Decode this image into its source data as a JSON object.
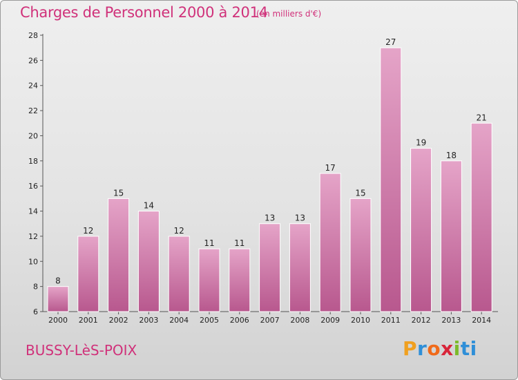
{
  "header": {
    "title": "Charges de Personnel 2000 à 2014",
    "subtitle": "(en milliers d'€)"
  },
  "footer": {
    "commune": "BUSSY-LèS-POIX",
    "brand": [
      "P",
      "r",
      "o",
      "x",
      "i",
      "t",
      "i"
    ]
  },
  "colors": {
    "accent": "#d0317a",
    "bar_top": "#e5a4c8",
    "bar_bottom": "#b8588e"
  },
  "chart_data": {
    "type": "bar",
    "title": "Charges de Personnel 2000 à 2014",
    "subtitle": "(en milliers d'€)",
    "categories": [
      "2000",
      "2001",
      "2002",
      "2003",
      "2004",
      "2005",
      "2006",
      "2007",
      "2008",
      "2009",
      "2010",
      "2011",
      "2012",
      "2013",
      "2014"
    ],
    "values": [
      8,
      12,
      15,
      14,
      12,
      11,
      11,
      13,
      13,
      17,
      15,
      27,
      19,
      18,
      21
    ],
    "ylim": [
      6,
      28
    ],
    "yticks": [
      6,
      8,
      10,
      12,
      14,
      16,
      18,
      20,
      22,
      24,
      26,
      28
    ],
    "grid": false,
    "legend": "none"
  }
}
